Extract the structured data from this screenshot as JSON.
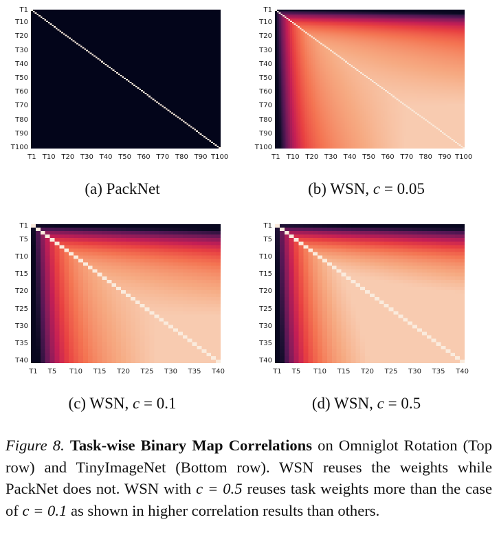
{
  "panels": [
    {
      "id": "a",
      "label": "(a) PackNet",
      "label_prefix": "(a) PackNet",
      "label_suffix": "",
      "c_value": "",
      "n_tasks": 100,
      "kind": "packnet",
      "y_ticks": [
        "T1",
        "T10",
        "T20",
        "T30",
        "T40",
        "T50",
        "T60",
        "T70",
        "T80",
        "T90",
        "T100"
      ],
      "x_ticks": [
        "T1",
        "T10",
        "T20",
        "T30",
        "T40",
        "T50",
        "T60",
        "T70",
        "T80",
        "T90",
        "T100"
      ]
    },
    {
      "id": "b",
      "label": "(b) WSN, c = 0.05",
      "label_prefix": "(b) WSN, ",
      "c_value": "0.05",
      "n_tasks": 100,
      "kind": "wsn",
      "y_ticks": [
        "T1",
        "T10",
        "T20",
        "T30",
        "T40",
        "T50",
        "T60",
        "T70",
        "T80",
        "T90",
        "T100"
      ],
      "x_ticks": [
        "T1",
        "T10",
        "T20",
        "T30",
        "T40",
        "T50",
        "T60",
        "T70",
        "T80",
        "T90",
        "T100"
      ]
    },
    {
      "id": "c",
      "label": "(c) WSN, c = 0.1",
      "label_prefix": "(c) WSN, ",
      "c_value": "0.1",
      "n_tasks": 40,
      "kind": "wsn",
      "y_ticks": [
        "T1",
        "T5",
        "T10",
        "T15",
        "T20",
        "T25",
        "T30",
        "T35",
        "T40"
      ],
      "x_ticks": [
        "T1",
        "T5",
        "T10",
        "T15",
        "T20",
        "T25",
        "T30",
        "T35",
        "T40"
      ]
    },
    {
      "id": "d",
      "label": "(d) WSN, c = 0.5",
      "label_prefix": "(d) WSN, ",
      "c_value": "0.5",
      "n_tasks": 40,
      "kind": "wsn",
      "y_ticks": [
        "T1",
        "T5",
        "T10",
        "T15",
        "T20",
        "T25",
        "T30",
        "T35",
        "T40"
      ],
      "x_ticks": [
        "T1",
        "T5",
        "T10",
        "T15",
        "T20",
        "T25",
        "T30",
        "T35",
        "T40"
      ]
    }
  ],
  "caption": {
    "figure_label": "Figure 8.",
    "title": "Task-wise Binary Map Correlations",
    "body_1": " on Omniglot Rotation (Top row) and TinyImageNet (Bottom row). WSN reuses the weights while PackNet does not. WSN with ",
    "c_eq_1": "c = 0.5",
    "body_2": " reuses task weights more than the case of ",
    "c_eq_2": "c = 0.1",
    "body_3": " as shown in higher correlation results than others."
  },
  "chart_data": [
    {
      "type": "heatmap",
      "title": "(a) PackNet",
      "rows": 100,
      "cols": 100,
      "xlabels": [
        "T1",
        "T10",
        "T20",
        "T30",
        "T40",
        "T50",
        "T60",
        "T70",
        "T80",
        "T90",
        "T100"
      ],
      "ylabels": [
        "T1",
        "T10",
        "T20",
        "T30",
        "T40",
        "T50",
        "T60",
        "T70",
        "T80",
        "T90",
        "T100"
      ],
      "description_values": {
        "diagonal": 1.0,
        "off_diagonal": 0.0
      }
    },
    {
      "type": "heatmap",
      "title": "(b) WSN, c = 0.05",
      "rows": 100,
      "cols": 100,
      "xlabels": [
        "T1",
        "T10",
        "T20",
        "T30",
        "T40",
        "T50",
        "T60",
        "T70",
        "T80",
        "T90",
        "T100"
      ],
      "ylabels": [
        "T1",
        "T10",
        "T20",
        "T30",
        "T40",
        "T50",
        "T60",
        "T70",
        "T80",
        "T90",
        "T100"
      ],
      "description_values": {
        "diagonal": 1.0,
        "near_diagonal": 0.85,
        "far_corner": 0.05
      }
    },
    {
      "type": "heatmap",
      "title": "(c) WSN, c = 0.1",
      "rows": 40,
      "cols": 40,
      "xlabels": [
        "T1",
        "T5",
        "T10",
        "T15",
        "T20",
        "T25",
        "T30",
        "T35",
        "T40"
      ],
      "ylabels": [
        "T1",
        "T5",
        "T10",
        "T15",
        "T20",
        "T25",
        "T30",
        "T35",
        "T40"
      ],
      "description_values": {
        "diagonal": 1.0,
        "near_diagonal": 0.8,
        "far_corner": 0.05
      }
    },
    {
      "type": "heatmap",
      "title": "(d) WSN, c = 0.5",
      "rows": 40,
      "cols": 40,
      "xlabels": [
        "T1",
        "T5",
        "T10",
        "T15",
        "T20",
        "T25",
        "T30",
        "T35",
        "T40"
      ],
      "ylabels": [
        "T1",
        "T5",
        "T10",
        "T15",
        "T20",
        "T25",
        "T30",
        "T35",
        "T40"
      ],
      "description_values": {
        "diagonal": 1.0,
        "near_diagonal": 0.85,
        "far_corner": 0.1
      }
    }
  ]
}
